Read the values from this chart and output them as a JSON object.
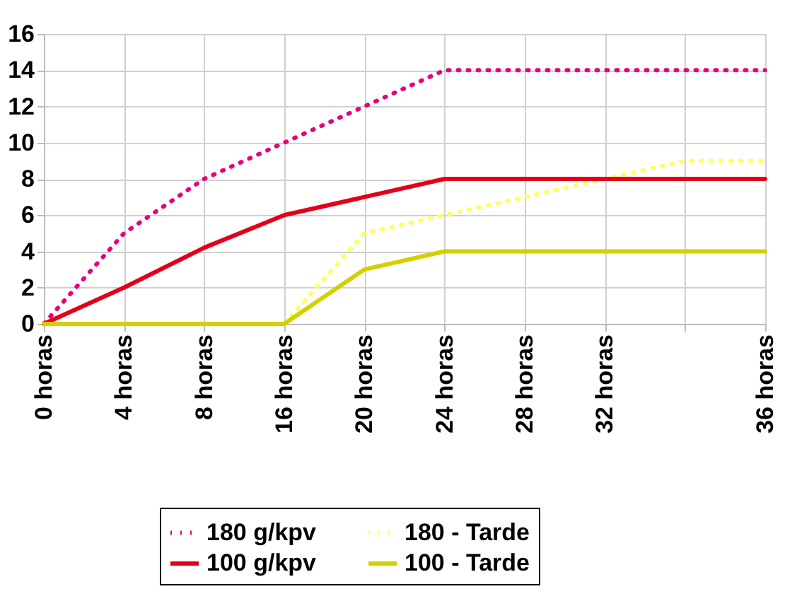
{
  "chart_data": {
    "type": "line",
    "categories": [
      "0 horas",
      "4 horas",
      "8 horas",
      "16 horas",
      "20 horas",
      "24 horas",
      "28 horas",
      "32 horas",
      null,
      "36 horas"
    ],
    "ylim": [
      0,
      16
    ],
    "yticks": [
      0,
      2,
      4,
      6,
      8,
      10,
      12,
      14,
      16
    ],
    "grid": true,
    "legend": "bottom",
    "marker": "none",
    "series": [
      {
        "name": "180 g/kpv",
        "color": "#e6007e",
        "line_style": "dotted",
        "values": [
          0,
          5,
          8,
          10,
          12,
          14,
          14,
          14,
          14,
          14
        ]
      },
      {
        "name": "100 g/kpv",
        "color": "#e2001a",
        "line_style": "solid",
        "values": [
          0,
          2,
          4.2,
          6,
          7,
          8,
          8,
          8,
          8,
          8
        ]
      },
      {
        "name": "180 - Tarde",
        "color": "#ffff66",
        "line_style": "dotted",
        "values": [
          null,
          null,
          null,
          0,
          5,
          6,
          7,
          8,
          9,
          9
        ]
      },
      {
        "name": "100 - Tarde",
        "color": "#d4d000",
        "line_style": "solid",
        "values": [
          0,
          0,
          0,
          0,
          3,
          4,
          4,
          4,
          4,
          4
        ]
      }
    ]
  }
}
